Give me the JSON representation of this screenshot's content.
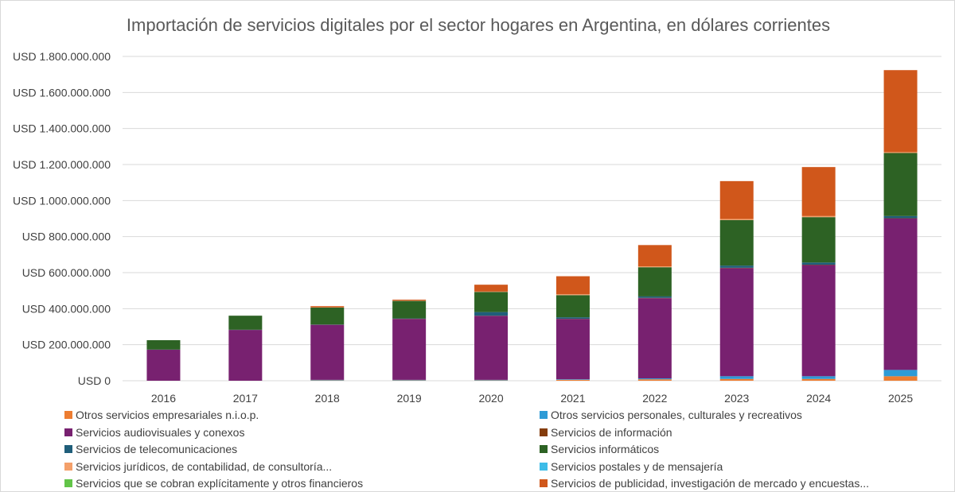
{
  "chart_data": {
    "type": "bar",
    "stacked": true,
    "title": "Importación de servicios digitales por el sector hogares en Argentina, en dólares corrientes",
    "xlabel": "",
    "ylabel": "",
    "ylim": [
      0,
      1800000000
    ],
    "y_ticks": [
      0,
      200000000,
      400000000,
      600000000,
      800000000,
      1000000000,
      1200000000,
      1400000000,
      1600000000,
      1800000000
    ],
    "y_tick_labels": [
      "USD 0",
      "USD 200.000.000",
      "USD 400.000.000",
      "USD 600.000.000",
      "USD 800.000.000",
      "USD 1.000.000.000",
      "USD 1.200.000.000",
      "USD 1.400.000.000",
      "USD 1.600.000.000",
      "USD 1.800.000.000"
    ],
    "grid": true,
    "legend_position": "bottom",
    "categories": [
      "2016",
      "2017",
      "2018",
      "2019",
      "2020",
      "2021",
      "2022",
      "2023",
      "2024",
      "2025"
    ],
    "series": [
      {
        "name": "Otros servicios empresariales n.i.o.p.",
        "color": "#ed7d31",
        "values": [
          0,
          0,
          2000000,
          2000000,
          2000000,
          5000000,
          8000000,
          10000000,
          10000000,
          25000000
        ]
      },
      {
        "name": "Otros servicios personales, culturales y recreativos",
        "color": "#2e9bd6",
        "values": [
          0,
          0,
          3000000,
          3000000,
          3000000,
          3000000,
          5000000,
          15000000,
          15000000,
          35000000
        ]
      },
      {
        "name": "Servicios audiovisuales y conexos",
        "color": "#782170",
        "values": [
          172000000,
          282000000,
          305000000,
          338000000,
          355000000,
          335000000,
          445000000,
          600000000,
          617000000,
          840000000
        ]
      },
      {
        "name": "Servicios de información",
        "color": "#843c0c",
        "values": [
          0,
          0,
          1000000,
          1000000,
          1000000,
          1000000,
          2000000,
          2000000,
          2000000,
          2000000
        ]
      },
      {
        "name": "Servicios de telecomunicaciones",
        "color": "#1f5e7a",
        "values": [
          1000000,
          1000000,
          2000000,
          2000000,
          20000000,
          8000000,
          8000000,
          12000000,
          12000000,
          12000000
        ]
      },
      {
        "name": "Servicios informáticos",
        "color": "#2d6224",
        "values": [
          52000000,
          78000000,
          93000000,
          97000000,
          112000000,
          123000000,
          162000000,
          253000000,
          252000000,
          350000000
        ]
      },
      {
        "name": "Servicios jurídicos, de contabilidad, de consultoría...",
        "color": "#f4a06a",
        "values": [
          0,
          0,
          2000000,
          2000000,
          2000000,
          5000000,
          5000000,
          6000000,
          6000000,
          5000000
        ]
      },
      {
        "name": "Servicios postales y de mensajería",
        "color": "#3dbce8",
        "values": [
          0,
          0,
          0,
          0,
          0,
          0,
          0,
          0,
          0,
          0
        ]
      },
      {
        "name": "Servicios que se cobran explícitamente y otros financieros",
        "color": "#62c448",
        "values": [
          0,
          0,
          0,
          0,
          0,
          0,
          0,
          0,
          0,
          0
        ]
      },
      {
        "name": "Servicios de publicidad, investigación de mercado y encuestas...",
        "color": "#d0571b",
        "values": [
          0,
          0,
          6000000,
          5000000,
          38000000,
          100000000,
          118000000,
          210000000,
          272000000,
          455000000
        ]
      }
    ]
  }
}
